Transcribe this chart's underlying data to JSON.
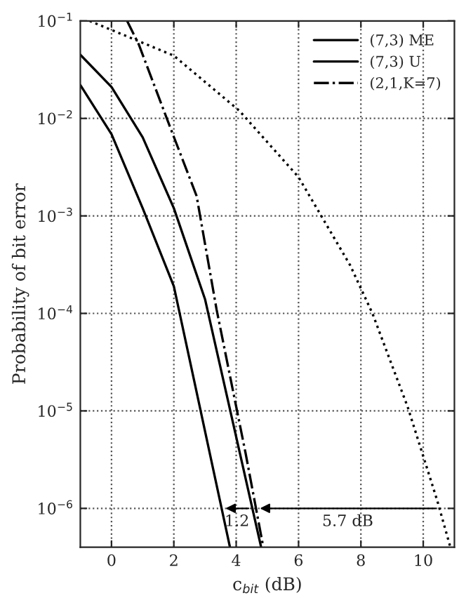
{
  "chart_data": {
    "type": "line",
    "xlabel": "c$_{bit}$ (dB)",
    "ylabel": "Probability of bit error",
    "xlim": [
      -1,
      11
    ],
    "xticks": [
      0,
      2,
      4,
      6,
      8,
      10
    ],
    "ylim": [
      4e-07,
      0.1
    ],
    "log": true,
    "yticks": [
      {
        "value": 0.1,
        "label": "10$^{−1}$"
      },
      {
        "value": 0.01,
        "label": "10$^{−2}$"
      },
      {
        "value": 0.001,
        "label": "10$^{−3}$"
      },
      {
        "value": 0.0001,
        "label": "10$^{−4}$"
      },
      {
        "value": 1e-05,
        "label": "10$^{−5}$"
      },
      {
        "value": 1e-06,
        "label": "10$^{−6}$"
      }
    ],
    "grid": true,
    "legend": "top right",
    "series": [
      {
        "name": "(7,3) ME",
        "color": "#000000",
        "line_style": "solid",
        "x": [
          -1,
          0,
          1,
          2,
          3.8
        ],
        "values": [
          0.022,
          0.0069,
          0.0012,
          0.00019,
          4e-07
        ]
      },
      {
        "name": "(7,3) U",
        "color": "#000000",
        "line_style": "solid",
        "x": [
          -1,
          0,
          1,
          2,
          3,
          4.8
        ],
        "values": [
          0.045,
          0.021,
          0.0064,
          0.0012,
          0.00014,
          4e-07
        ]
      },
      {
        "name": "(2,1,K=7)",
        "color": "#000000",
        "line_style": "dashdot",
        "x": [
          0.5,
          0.87,
          1.87,
          2.73,
          3.37,
          4.3,
          4.87
        ],
        "values": [
          0.1,
          0.058,
          0.0083,
          0.0016,
          0.00011,
          3.7e-06,
          4e-07
        ]
      },
      {
        "color": "#000000",
        "line_style": "dotted",
        "x": [
          -0.7,
          2,
          4.1,
          6,
          7.66,
          8.37,
          9.5,
          10.45,
          10.87
        ],
        "values": [
          0.1,
          0.044,
          0.012,
          0.0025,
          0.00031,
          0.0001,
          1.1e-05,
          1.2e-06,
          4e-07
        ]
      }
    ],
    "annotations": [
      "1.2",
      "5.7 dB"
    ]
  }
}
